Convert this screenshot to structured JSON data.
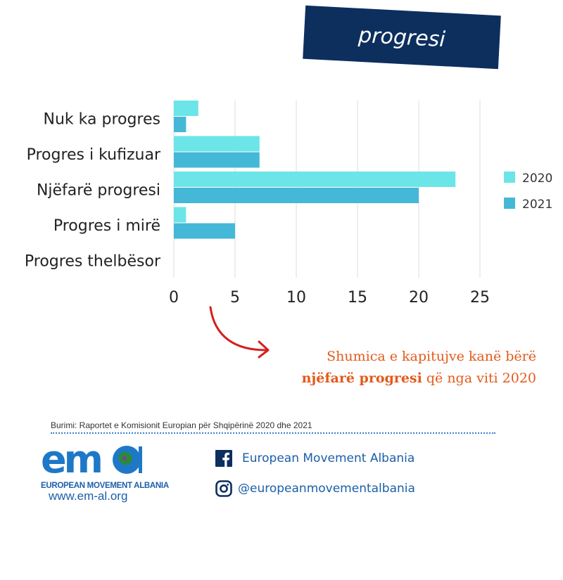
{
  "title": "progresi",
  "chart_data": {
    "type": "bar",
    "orientation": "horizontal",
    "categories": [
      "Nuk ka progres",
      "Progres i kufizuar",
      "Njëfarë progresi",
      "Progres i mirë",
      "Progres thelbësor"
    ],
    "series": [
      {
        "name": "2020",
        "values": [
          2,
          7,
          23,
          1,
          0
        ],
        "color": "#6ce5e8"
      },
      {
        "name": "2021",
        "values": [
          1,
          7,
          20,
          5,
          0
        ],
        "color": "#45b8d8"
      }
    ],
    "x_ticks": [
      0,
      5,
      10,
      15,
      20,
      25
    ],
    "xlim": [
      0,
      27
    ],
    "grid": "vertical",
    "legend": "right"
  },
  "annotation": {
    "line1": "Shumica e kapitujve kanë bërë",
    "bold": "njëfarë progresi",
    "rest": " që nga viti 2020",
    "color": "#e35a1c"
  },
  "source": "Burimi: Raportet e Komisionit Europian për Shqipërinë 2020 dhe 2021",
  "footer": {
    "logo_caption": "EUROPEAN MOVEMENT ALBANIA",
    "website": "www.em-al.org",
    "facebook": "European Movement Albania",
    "instagram": "@europeanmovementalbania"
  },
  "colors": {
    "banner": "#0c2f5e",
    "brand_blue": "#1b5fa8"
  }
}
